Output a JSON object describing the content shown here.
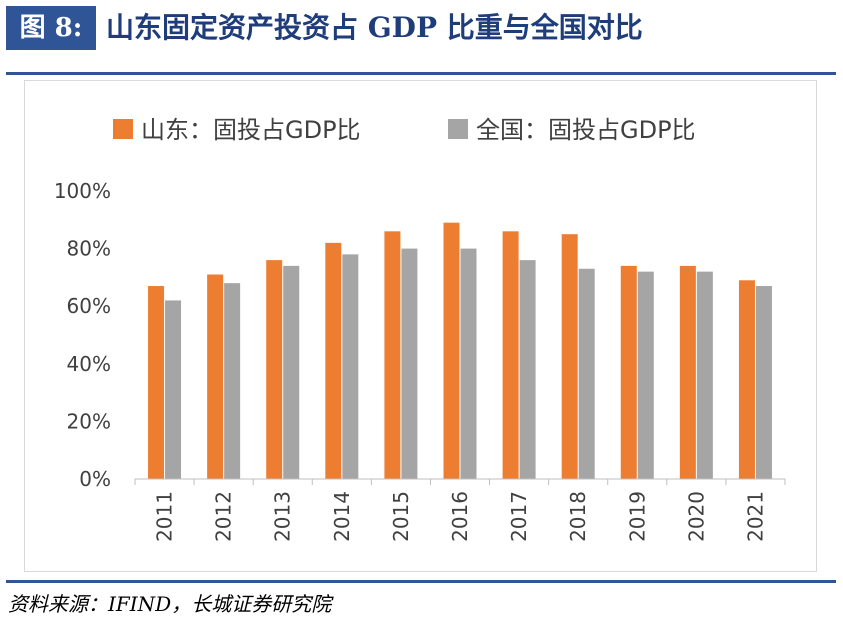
{
  "figure": {
    "label": "图 8:",
    "title": "山东固定资产投资占 GDP 比重与全国对比"
  },
  "source": "资料来源：IFIND，长城证券研究院",
  "colors": {
    "accent": "#2f5597",
    "shandong": "#ed7d31",
    "national": "#a5a5a5"
  },
  "chart_data": {
    "type": "bar",
    "categories": [
      "2011",
      "2012",
      "2013",
      "2014",
      "2015",
      "2016",
      "2017",
      "2018",
      "2019",
      "2020",
      "2021"
    ],
    "series": [
      {
        "name": "山东：固投占GDP比",
        "values": [
          67,
          71,
          76,
          82,
          86,
          89,
          86,
          85,
          74,
          74,
          69
        ]
      },
      {
        "name": "全国：固投占GDP比",
        "values": [
          62,
          68,
          74,
          78,
          80,
          80,
          76,
          73,
          72,
          72,
          67
        ]
      }
    ],
    "yticks": [
      "0%",
      "20%",
      "40%",
      "60%",
      "80%",
      "100%"
    ],
    "ylim": [
      0,
      100
    ],
    "grid": false,
    "legend": "top"
  }
}
